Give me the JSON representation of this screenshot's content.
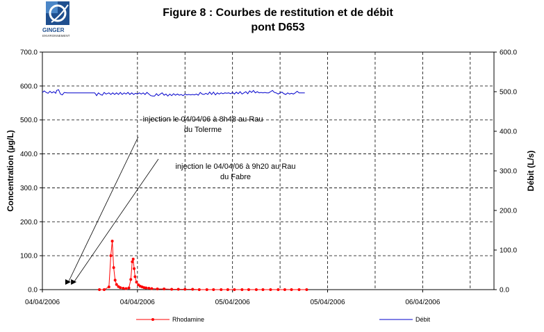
{
  "figure": {
    "title_line1": "Figure 8 : Courbes de restitution et de débit",
    "title_line2": "pont D653"
  },
  "logo": {
    "name": "GINGER",
    "sub": "ENVIRONNEMENT"
  },
  "annotations": [
    {
      "line1": "injection le 04/04/06 à 8h48 au Rau",
      "line2": "du Tolerme"
    },
    {
      "line1": "injection le 04/04/06 à 9h20 au Rau",
      "line2": "du Fabre"
    }
  ],
  "chart_data": {
    "type": "line",
    "ylabel": "Concentration (µg/L)",
    "y2label": "Débit (L/s)",
    "ylim": [
      0,
      700
    ],
    "y2lim": [
      0,
      600
    ],
    "x_range": [
      0,
      4.75
    ],
    "y_ticks": [
      "0.0",
      "100.0",
      "200.0",
      "300.0",
      "400.0",
      "500.0",
      "600.0",
      "700.0"
    ],
    "y2_ticks": [
      "0.0",
      "100.0",
      "200.0",
      "300.0",
      "400.0",
      "500.0",
      "600.0"
    ],
    "x_ticks": [
      {
        "x": 0,
        "label": "04/04/2006"
      },
      {
        "x": 1,
        "label": "04/04/2006"
      },
      {
        "x": 2,
        "label": "05/04/2006"
      },
      {
        "x": 3,
        "label": "05/04/2006"
      },
      {
        "x": 4,
        "label": "06/04/2006"
      }
    ],
    "injections": [
      0.27,
      0.33
    ],
    "grid": true,
    "legend_position": "bottom",
    "series": [
      {
        "name": "Rhodamine",
        "axis": "left",
        "color": "#ff0000",
        "marker": "circle",
        "points": [
          [
            0.6,
            0
          ],
          [
            0.65,
            0
          ],
          [
            0.7,
            8
          ],
          [
            0.72,
            100
          ],
          [
            0.735,
            143
          ],
          [
            0.75,
            65
          ],
          [
            0.765,
            28
          ],
          [
            0.78,
            15
          ],
          [
            0.8,
            9
          ],
          [
            0.82,
            6
          ],
          [
            0.85,
            4
          ],
          [
            0.88,
            3
          ],
          [
            0.91,
            5
          ],
          [
            0.93,
            30
          ],
          [
            0.945,
            82
          ],
          [
            0.955,
            90
          ],
          [
            0.965,
            62
          ],
          [
            0.975,
            38
          ],
          [
            0.99,
            22
          ],
          [
            1.01,
            14
          ],
          [
            1.03,
            10
          ],
          [
            1.05,
            8
          ],
          [
            1.07,
            6
          ],
          [
            1.09,
            5
          ],
          [
            1.12,
            4
          ],
          [
            1.15,
            3
          ],
          [
            1.21,
            2
          ],
          [
            1.28,
            2
          ],
          [
            1.36,
            1
          ],
          [
            1.43,
            1
          ],
          [
            1.5,
            1
          ],
          [
            1.58,
            1
          ],
          [
            1.65,
            0
          ],
          [
            1.73,
            0
          ],
          [
            1.8,
            0
          ],
          [
            1.88,
            0
          ],
          [
            1.95,
            0
          ],
          [
            2.02,
            0
          ],
          [
            2.1,
            0
          ],
          [
            2.17,
            0
          ],
          [
            2.25,
            0
          ],
          [
            2.32,
            0
          ],
          [
            2.4,
            0
          ],
          [
            2.48,
            0
          ],
          [
            2.55,
            0
          ],
          [
            2.62,
            0
          ],
          [
            2.7,
            0
          ],
          [
            2.78,
            0
          ]
        ]
      },
      {
        "name": "Débit",
        "axis": "right",
        "color": "#0000cc",
        "marker": "none",
        "points": [
          [
            0.0,
            498
          ],
          [
            0.02,
            502
          ],
          [
            0.04,
            498
          ],
          [
            0.06,
            496
          ],
          [
            0.08,
            501
          ],
          [
            0.1,
            497
          ],
          [
            0.12,
            500
          ],
          [
            0.14,
            496
          ],
          [
            0.15,
            503
          ],
          [
            0.17,
            505
          ],
          [
            0.19,
            494
          ],
          [
            0.21,
            492
          ],
          [
            0.23,
            498
          ],
          [
            0.26,
            497
          ],
          [
            0.3,
            497
          ],
          [
            0.35,
            497
          ],
          [
            0.4,
            497
          ],
          [
            0.45,
            497
          ],
          [
            0.5,
            497
          ],
          [
            0.55,
            497
          ],
          [
            0.56,
            494
          ],
          [
            0.57,
            490
          ],
          [
            0.59,
            497
          ],
          [
            0.61,
            493
          ],
          [
            0.63,
            491
          ],
          [
            0.65,
            498
          ],
          [
            0.67,
            494
          ],
          [
            0.7,
            497
          ],
          [
            0.72,
            493
          ],
          [
            0.74,
            497
          ],
          [
            0.76,
            493
          ],
          [
            0.78,
            497
          ],
          [
            0.8,
            493
          ],
          [
            0.82,
            498
          ],
          [
            0.84,
            493
          ],
          [
            0.86,
            497
          ],
          [
            0.88,
            494
          ],
          [
            0.9,
            498
          ],
          [
            0.92,
            493
          ],
          [
            0.94,
            497
          ],
          [
            0.96,
            493
          ],
          [
            0.98,
            496
          ],
          [
            1.0,
            494
          ],
          [
            1.02,
            497
          ],
          [
            1.04,
            494
          ],
          [
            1.06,
            497
          ],
          [
            1.08,
            493
          ],
          [
            1.1,
            498
          ],
          [
            1.12,
            494
          ],
          [
            1.14,
            490
          ],
          [
            1.16,
            489
          ],
          [
            1.18,
            489
          ],
          [
            1.2,
            495
          ],
          [
            1.22,
            490
          ],
          [
            1.24,
            494
          ],
          [
            1.26,
            497
          ],
          [
            1.28,
            491
          ],
          [
            1.3,
            494
          ],
          [
            1.32,
            489
          ],
          [
            1.34,
            494
          ],
          [
            1.36,
            490
          ],
          [
            1.38,
            495
          ],
          [
            1.4,
            491
          ],
          [
            1.42,
            494
          ],
          [
            1.44,
            491
          ],
          [
            1.46,
            493
          ],
          [
            1.48,
            490
          ],
          [
            1.5,
            494
          ],
          [
            1.52,
            492
          ],
          [
            1.54,
            493
          ],
          [
            1.56,
            492
          ],
          [
            1.58,
            493
          ],
          [
            1.6,
            492
          ],
          [
            1.62,
            494
          ],
          [
            1.64,
            491
          ],
          [
            1.66,
            498
          ],
          [
            1.68,
            494
          ],
          [
            1.7,
            493
          ],
          [
            1.72,
            496
          ],
          [
            1.74,
            493
          ],
          [
            1.76,
            499
          ],
          [
            1.78,
            493
          ],
          [
            1.8,
            499
          ],
          [
            1.82,
            492
          ],
          [
            1.84,
            497
          ],
          [
            1.86,
            494
          ],
          [
            1.88,
            497
          ],
          [
            1.9,
            495
          ],
          [
            1.92,
            497
          ],
          [
            1.94,
            496
          ],
          [
            1.96,
            497
          ],
          [
            1.98,
            495
          ],
          [
            2.0,
            498
          ],
          [
            2.02,
            494
          ],
          [
            2.04,
            499
          ],
          [
            2.06,
            495
          ],
          [
            2.08,
            500
          ],
          [
            2.1,
            494
          ],
          [
            2.12,
            497
          ],
          [
            2.14,
            500
          ],
          [
            2.16,
            495
          ],
          [
            2.18,
            502
          ],
          [
            2.2,
            498
          ],
          [
            2.22,
            503
          ],
          [
            2.24,
            497
          ],
          [
            2.26,
            500
          ],
          [
            2.28,
            497
          ],
          [
            2.3,
            498
          ],
          [
            2.32,
            497
          ],
          [
            2.34,
            498
          ],
          [
            2.36,
            497
          ],
          [
            2.38,
            497
          ],
          [
            2.4,
            500
          ],
          [
            2.42,
            503
          ],
          [
            2.44,
            498
          ],
          [
            2.46,
            497
          ],
          [
            2.48,
            494
          ],
          [
            2.5,
            497
          ],
          [
            2.52,
            499
          ],
          [
            2.54,
            495
          ],
          [
            2.56,
            493
          ],
          [
            2.58,
            497
          ],
          [
            2.6,
            494
          ],
          [
            2.62,
            496
          ],
          [
            2.64,
            494
          ],
          [
            2.66,
            497
          ],
          [
            2.68,
            501
          ],
          [
            2.7,
            497
          ],
          [
            2.72,
            497
          ],
          [
            2.74,
            497
          ],
          [
            2.76,
            497
          ]
        ]
      }
    ]
  }
}
